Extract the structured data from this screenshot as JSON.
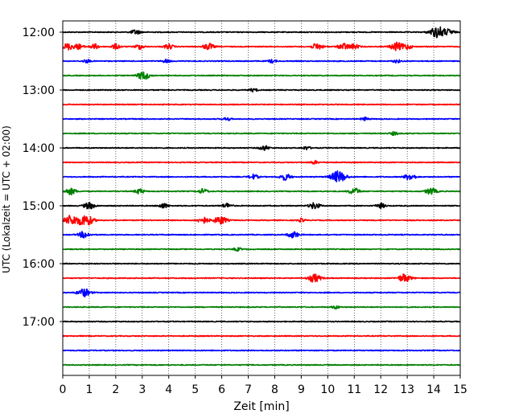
{
  "chart_data": {
    "type": "line",
    "xlabel": "Zeit  [min]",
    "ylabel": "UTC (Lokalzeit = UTC + 02:00)",
    "xlim": [
      0,
      15
    ],
    "x_ticks": [
      "0",
      "1",
      "2",
      "3",
      "4",
      "5",
      "6",
      "7",
      "8",
      "9",
      "10",
      "11",
      "12",
      "13",
      "14",
      "15"
    ],
    "y_tick_labels": [
      "12:00",
      "13:00",
      "14:00",
      "15:00",
      "16:00",
      "17:00"
    ],
    "grid": "vertical dotted lines at each minute",
    "trace_interval_minutes": 15,
    "start_time": "12:00",
    "end_time": "17:45",
    "colors_cycle": [
      "#000000",
      "#ff0000",
      "#0000ff",
      "#008000"
    ],
    "traces": [
      {
        "time": "12:00",
        "color": "#000000",
        "events": [
          {
            "t": 2.75,
            "a": 3
          },
          {
            "t": 14.15,
            "a": 7
          },
          {
            "t": 14.6,
            "a": 3
          }
        ]
      },
      {
        "time": "12:15",
        "color": "#ff0000",
        "events": [
          {
            "t": 0.2,
            "a": 4
          },
          {
            "t": 0.6,
            "a": 3
          },
          {
            "t": 1.2,
            "a": 3
          },
          {
            "t": 2.0,
            "a": 3
          },
          {
            "t": 2.9,
            "a": 3
          },
          {
            "t": 4.0,
            "a": 3
          },
          {
            "t": 5.5,
            "a": 4
          },
          {
            "t": 9.6,
            "a": 4
          },
          {
            "t": 10.6,
            "a": 4
          },
          {
            "t": 11.0,
            "a": 3
          },
          {
            "t": 12.6,
            "a": 5
          },
          {
            "t": 13.0,
            "a": 3
          }
        ]
      },
      {
        "time": "12:30",
        "color": "#0000ff",
        "events": [
          {
            "t": 0.9,
            "a": 2
          },
          {
            "t": 3.9,
            "a": 2
          },
          {
            "t": 7.9,
            "a": 2
          },
          {
            "t": 12.6,
            "a": 2
          }
        ]
      },
      {
        "time": "12:45",
        "color": "#008000",
        "events": [
          {
            "t": 3.05,
            "a": 5
          }
        ]
      },
      {
        "time": "13:00",
        "color": "#000000",
        "events": [
          {
            "t": 7.2,
            "a": 2
          }
        ]
      },
      {
        "time": "13:15",
        "color": "#ff0000",
        "events": []
      },
      {
        "time": "13:30",
        "color": "#0000ff",
        "events": [
          {
            "t": 6.2,
            "a": 2
          },
          {
            "t": 11.4,
            "a": 2
          }
        ]
      },
      {
        "time": "13:45",
        "color": "#008000",
        "events": [
          {
            "t": 12.5,
            "a": 2
          }
        ]
      },
      {
        "time": "14:00",
        "color": "#000000",
        "events": [
          {
            "t": 7.6,
            "a": 3
          },
          {
            "t": 9.2,
            "a": 2
          }
        ]
      },
      {
        "time": "14:15",
        "color": "#ff0000",
        "events": [
          {
            "t": 9.5,
            "a": 2
          }
        ]
      },
      {
        "time": "14:30",
        "color": "#0000ff",
        "events": [
          {
            "t": 7.2,
            "a": 3
          },
          {
            "t": 8.4,
            "a": 4
          },
          {
            "t": 10.4,
            "a": 7
          },
          {
            "t": 13.1,
            "a": 4
          }
        ]
      },
      {
        "time": "14:45",
        "color": "#008000",
        "events": [
          {
            "t": 0.3,
            "a": 4
          },
          {
            "t": 2.9,
            "a": 3
          },
          {
            "t": 5.3,
            "a": 3
          },
          {
            "t": 11.0,
            "a": 4
          },
          {
            "t": 13.9,
            "a": 4
          }
        ]
      },
      {
        "time": "15:00",
        "color": "#000000",
        "events": [
          {
            "t": 1.0,
            "a": 4
          },
          {
            "t": 3.8,
            "a": 3
          },
          {
            "t": 6.2,
            "a": 3
          },
          {
            "t": 9.5,
            "a": 4
          },
          {
            "t": 12.0,
            "a": 3
          }
        ]
      },
      {
        "time": "15:15",
        "color": "#ff0000",
        "events": [
          {
            "t": 0.3,
            "a": 6
          },
          {
            "t": 0.85,
            "a": 7
          },
          {
            "t": 5.3,
            "a": 4
          },
          {
            "t": 5.95,
            "a": 5
          },
          {
            "t": 9.0,
            "a": 2
          }
        ]
      },
      {
        "time": "15:30",
        "color": "#0000ff",
        "events": [
          {
            "t": 0.8,
            "a": 4
          },
          {
            "t": 8.7,
            "a": 4
          }
        ]
      },
      {
        "time": "15:45",
        "color": "#008000",
        "events": [
          {
            "t": 6.6,
            "a": 2
          }
        ]
      },
      {
        "time": "16:00",
        "color": "#000000",
        "events": []
      },
      {
        "time": "16:15",
        "color": "#ff0000",
        "events": [
          {
            "t": 9.5,
            "a": 5
          },
          {
            "t": 12.9,
            "a": 5
          }
        ]
      },
      {
        "time": "16:30",
        "color": "#0000ff",
        "events": [
          {
            "t": 0.8,
            "a": 5
          }
        ]
      },
      {
        "time": "16:45",
        "color": "#008000",
        "events": [
          {
            "t": 10.3,
            "a": 2
          }
        ]
      },
      {
        "time": "17:00",
        "color": "#000000",
        "events": []
      },
      {
        "time": "17:15",
        "color": "#ff0000",
        "events": []
      },
      {
        "time": "17:30",
        "color": "#0000ff",
        "events": []
      },
      {
        "time": "17:45",
        "color": "#008000",
        "events": []
      }
    ]
  }
}
